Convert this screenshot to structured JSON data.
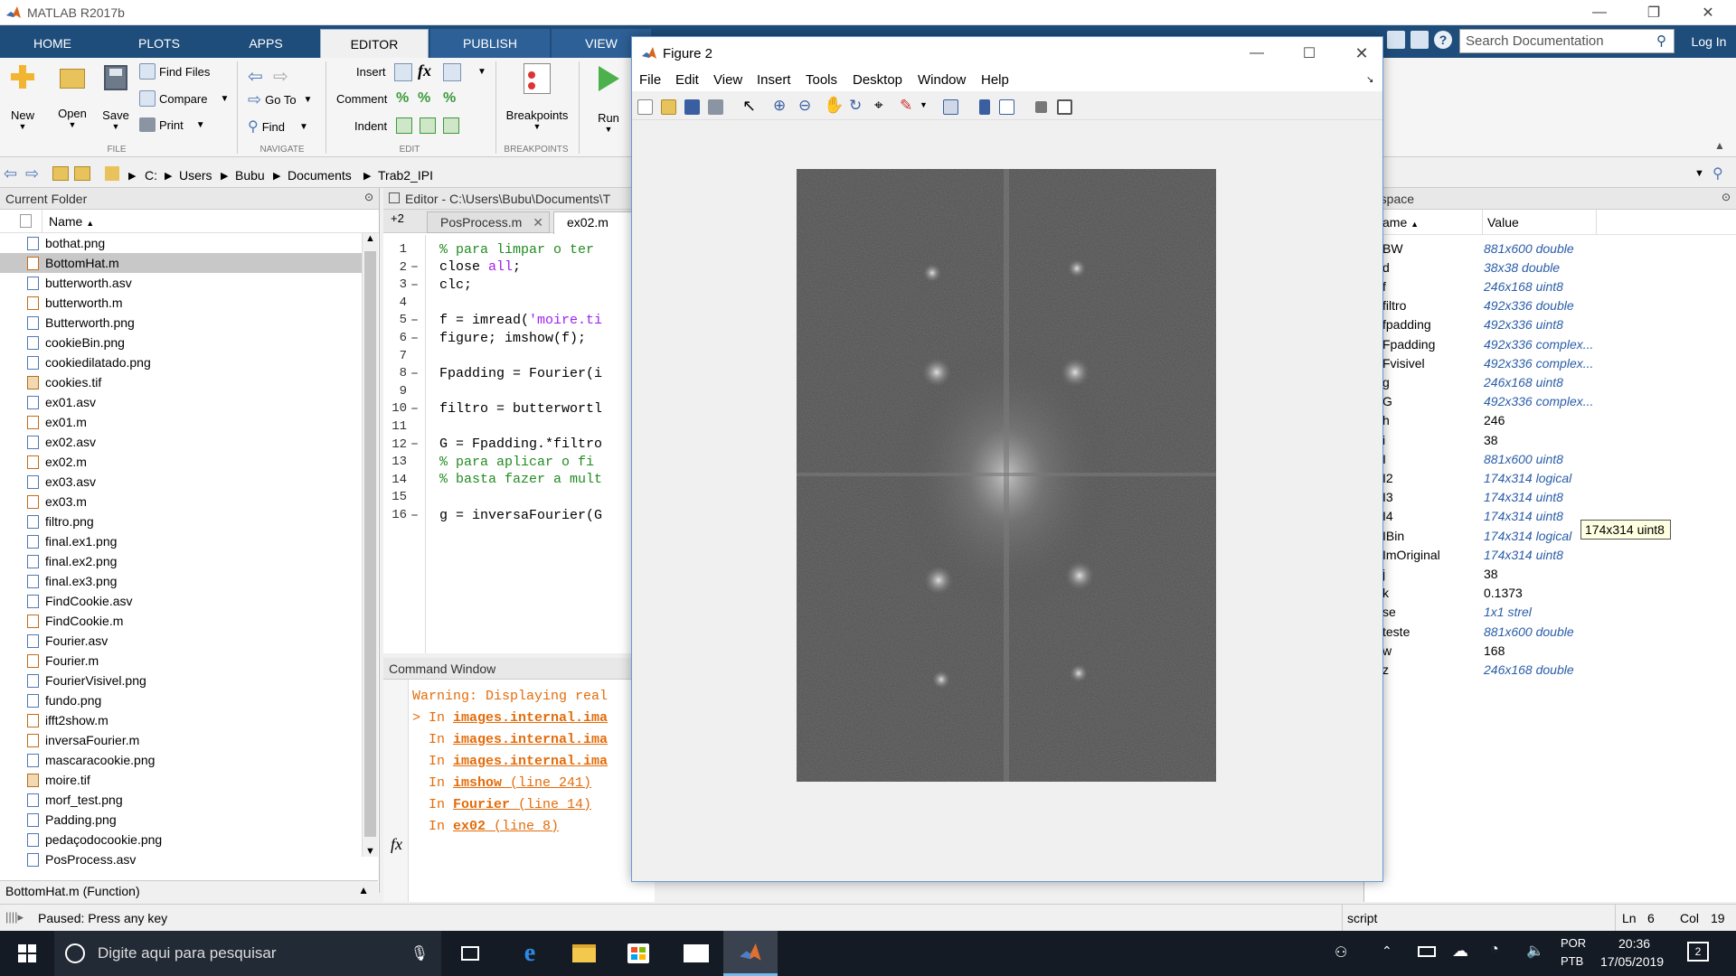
{
  "app": {
    "title": "MATLAB R2017b"
  },
  "ribbon": {
    "tabs": [
      "HOME",
      "PLOTS",
      "APPS",
      "EDITOR",
      "PUBLISH",
      "VIEW"
    ],
    "active_tab": "EDITOR",
    "search_placeholder": "Search Documentation",
    "login": "Log In",
    "file": {
      "new": "New",
      "open": "Open",
      "save": "Save",
      "find_files": "Find Files",
      "compare": "Compare",
      "print": "Print",
      "section": "FILE"
    },
    "navigate": {
      "go_to": "Go To",
      "find": "Find",
      "section": "NAVIGATE"
    },
    "edit": {
      "insert": "Insert",
      "comment": "Comment",
      "indent": "Indent",
      "section": "EDIT"
    },
    "breakpoints": {
      "label": "Breakpoints",
      "section": "BREAKPOINTS"
    },
    "run": {
      "label": "Run"
    }
  },
  "address": {
    "crumbs": [
      "C:",
      "Users",
      "Bubu",
      "Documents",
      "Trab2_IPI"
    ]
  },
  "current_folder": {
    "title": "Current Folder",
    "col_name": "Name",
    "files": [
      {
        "name": "bothat.png",
        "type": "img"
      },
      {
        "name": "BottomHat.m",
        "type": "m",
        "selected": true
      },
      {
        "name": "butterworth.asv",
        "type": "asv"
      },
      {
        "name": "butterworth.m",
        "type": "m"
      },
      {
        "name": "Butterworth.png",
        "type": "img"
      },
      {
        "name": "cookieBin.png",
        "type": "img"
      },
      {
        "name": "cookiedilatado.png",
        "type": "img"
      },
      {
        "name": "cookies.tif",
        "type": "tif"
      },
      {
        "name": "ex01.asv",
        "type": "asv"
      },
      {
        "name": "ex01.m",
        "type": "m"
      },
      {
        "name": "ex02.asv",
        "type": "asv"
      },
      {
        "name": "ex02.m",
        "type": "m"
      },
      {
        "name": "ex03.asv",
        "type": "asv"
      },
      {
        "name": "ex03.m",
        "type": "m"
      },
      {
        "name": "filtro.png",
        "type": "img"
      },
      {
        "name": "final.ex1.png",
        "type": "img"
      },
      {
        "name": "final.ex2.png",
        "type": "img"
      },
      {
        "name": "final.ex3.png",
        "type": "img"
      },
      {
        "name": "FindCookie.asv",
        "type": "asv"
      },
      {
        "name": "FindCookie.m",
        "type": "m"
      },
      {
        "name": "Fourier.asv",
        "type": "asv"
      },
      {
        "name": "Fourier.m",
        "type": "m"
      },
      {
        "name": "FourierVisivel.png",
        "type": "img"
      },
      {
        "name": "fundo.png",
        "type": "img"
      },
      {
        "name": "ifft2show.m",
        "type": "m"
      },
      {
        "name": "inversaFourier.m",
        "type": "m"
      },
      {
        "name": "mascaracookie.png",
        "type": "img"
      },
      {
        "name": "moire.tif",
        "type": "tif"
      },
      {
        "name": "morf_test.png",
        "type": "img"
      },
      {
        "name": "Padding.png",
        "type": "img"
      },
      {
        "name": "pedaçodocookie.png",
        "type": "img"
      },
      {
        "name": "PosProcess.asv",
        "type": "asv"
      }
    ],
    "details": "BottomHat.m  (Function)"
  },
  "editor": {
    "title": "Editor - C:\\Users\\Bubu\\Documents\\T",
    "tab_count": "+2",
    "tabs": [
      "PosProcess.m",
      "ex02.m"
    ],
    "lines": [
      {
        "n": "1",
        "dash": "",
        "segs": [
          {
            "t": "% para limpar o ter",
            "c": "cmt"
          }
        ]
      },
      {
        "n": "2",
        "dash": "–",
        "segs": [
          {
            "t": "close ",
            "c": ""
          },
          {
            "t": "all",
            "c": "str"
          },
          {
            "t": ";",
            "c": ""
          }
        ]
      },
      {
        "n": "3",
        "dash": "–",
        "segs": [
          {
            "t": "clc;",
            "c": ""
          }
        ]
      },
      {
        "n": "4",
        "dash": "",
        "segs": []
      },
      {
        "n": "5",
        "dash": "–",
        "segs": [
          {
            "t": "f = imread(",
            "c": ""
          },
          {
            "t": "'moire.ti",
            "c": "str"
          }
        ]
      },
      {
        "n": "6",
        "dash": "–",
        "segs": [
          {
            "t": "figure; imshow(f);",
            "c": ""
          }
        ]
      },
      {
        "n": "7",
        "dash": "",
        "segs": []
      },
      {
        "n": "8",
        "dash": "–",
        "segs": [
          {
            "t": "Fpadding = Fourier(i",
            "c": ""
          }
        ]
      },
      {
        "n": "9",
        "dash": "",
        "segs": []
      },
      {
        "n": "10",
        "dash": "–",
        "segs": [
          {
            "t": "filtro = butterwortl",
            "c": ""
          }
        ]
      },
      {
        "n": "11",
        "dash": "",
        "segs": []
      },
      {
        "n": "12",
        "dash": "–",
        "segs": [
          {
            "t": "G = Fpadding.*filtro",
            "c": ""
          }
        ]
      },
      {
        "n": "13",
        "dash": "",
        "segs": [
          {
            "t": "% para aplicar o fi",
            "c": "cmt"
          }
        ]
      },
      {
        "n": "14",
        "dash": "",
        "segs": [
          {
            "t": "% basta fazer a mult",
            "c": "cmt"
          }
        ]
      },
      {
        "n": "15",
        "dash": "",
        "segs": []
      },
      {
        "n": "16",
        "dash": "–",
        "segs": [
          {
            "t": "g = inversaFourier(G",
            "c": ""
          }
        ]
      }
    ]
  },
  "command_window": {
    "title": "Command Window",
    "warning": "Warning: Displaying real",
    "trace": [
      {
        "prefix": "> In ",
        "link": "images.internal.ima",
        "rest": ""
      },
      {
        "prefix": "  In ",
        "link": "images.internal.ima",
        "rest": ""
      },
      {
        "prefix": "  In ",
        "link": "images.internal.ima",
        "rest": ""
      },
      {
        "prefix": "  In ",
        "link": "imshow",
        "rest": " (line 241)"
      },
      {
        "prefix": "  In ",
        "link": "Fourier",
        "rest": " (line 14)"
      },
      {
        "prefix": "  In ",
        "link": "ex02",
        "rest": " (line 8)"
      }
    ],
    "prompt": "fx"
  },
  "figure": {
    "title": "Figure 2",
    "menu": [
      "File",
      "Edit",
      "View",
      "Insert",
      "Tools",
      "Desktop",
      "Window",
      "Help"
    ]
  },
  "workspace": {
    "title": "rkspace",
    "col_name": "ame",
    "col_value": "Value",
    "vars": [
      {
        "name": "BW",
        "value": "881x600 double",
        "link": true
      },
      {
        "name": "d",
        "value": "38x38 double",
        "link": true
      },
      {
        "name": "f",
        "value": "246x168 uint8",
        "link": true
      },
      {
        "name": "filtro",
        "value": "492x336 double",
        "link": true
      },
      {
        "name": "fpadding",
        "value": "492x336 uint8",
        "link": true
      },
      {
        "name": "Fpadding",
        "value": "492x336 complex...",
        "link": true
      },
      {
        "name": "Fvisivel",
        "value": "492x336 complex...",
        "link": true
      },
      {
        "name": "g",
        "value": "246x168 uint8",
        "link": true
      },
      {
        "name": "G",
        "value": "492x336 complex...",
        "link": true
      },
      {
        "name": "h",
        "value": "246",
        "link": false
      },
      {
        "name": "i",
        "value": "38",
        "link": false
      },
      {
        "name": "I",
        "value": "881x600 uint8",
        "link": true
      },
      {
        "name": "I2",
        "value": "174x314 logical",
        "link": true
      },
      {
        "name": "I3",
        "value": "174x314 uint8",
        "link": true
      },
      {
        "name": "I4",
        "value": "174x314 uint8",
        "link": true
      },
      {
        "name": "IBin",
        "value": "174x314 logical",
        "link": true
      },
      {
        "name": "ImOriginal",
        "value": "174x314 uint8",
        "link": true
      },
      {
        "name": "j",
        "value": "38",
        "link": false
      },
      {
        "name": "k",
        "value": "0.1373",
        "link": false
      },
      {
        "name": "se",
        "value": "1x1 strel",
        "link": true
      },
      {
        "name": "teste",
        "value": "881x600 double",
        "link": true
      },
      {
        "name": "w",
        "value": "168",
        "link": false
      },
      {
        "name": "z",
        "value": "246x168 double",
        "link": true
      }
    ],
    "tooltip": "174x314 uint8"
  },
  "status": {
    "text": "Paused: Press any key",
    "mode": "script",
    "ln_label": "Ln",
    "ln": "6",
    "col_label": "Col",
    "col": "19"
  },
  "taskbar": {
    "search": "Digite aqui para pesquisar",
    "lang1": "POR",
    "lang2": "PTB",
    "time": "20:36",
    "date": "17/05/2019",
    "notif": "2"
  },
  "colors": {
    "ribbon": "#1e4d7b",
    "accent": "#0078d7",
    "warning": "#e46c0a"
  }
}
